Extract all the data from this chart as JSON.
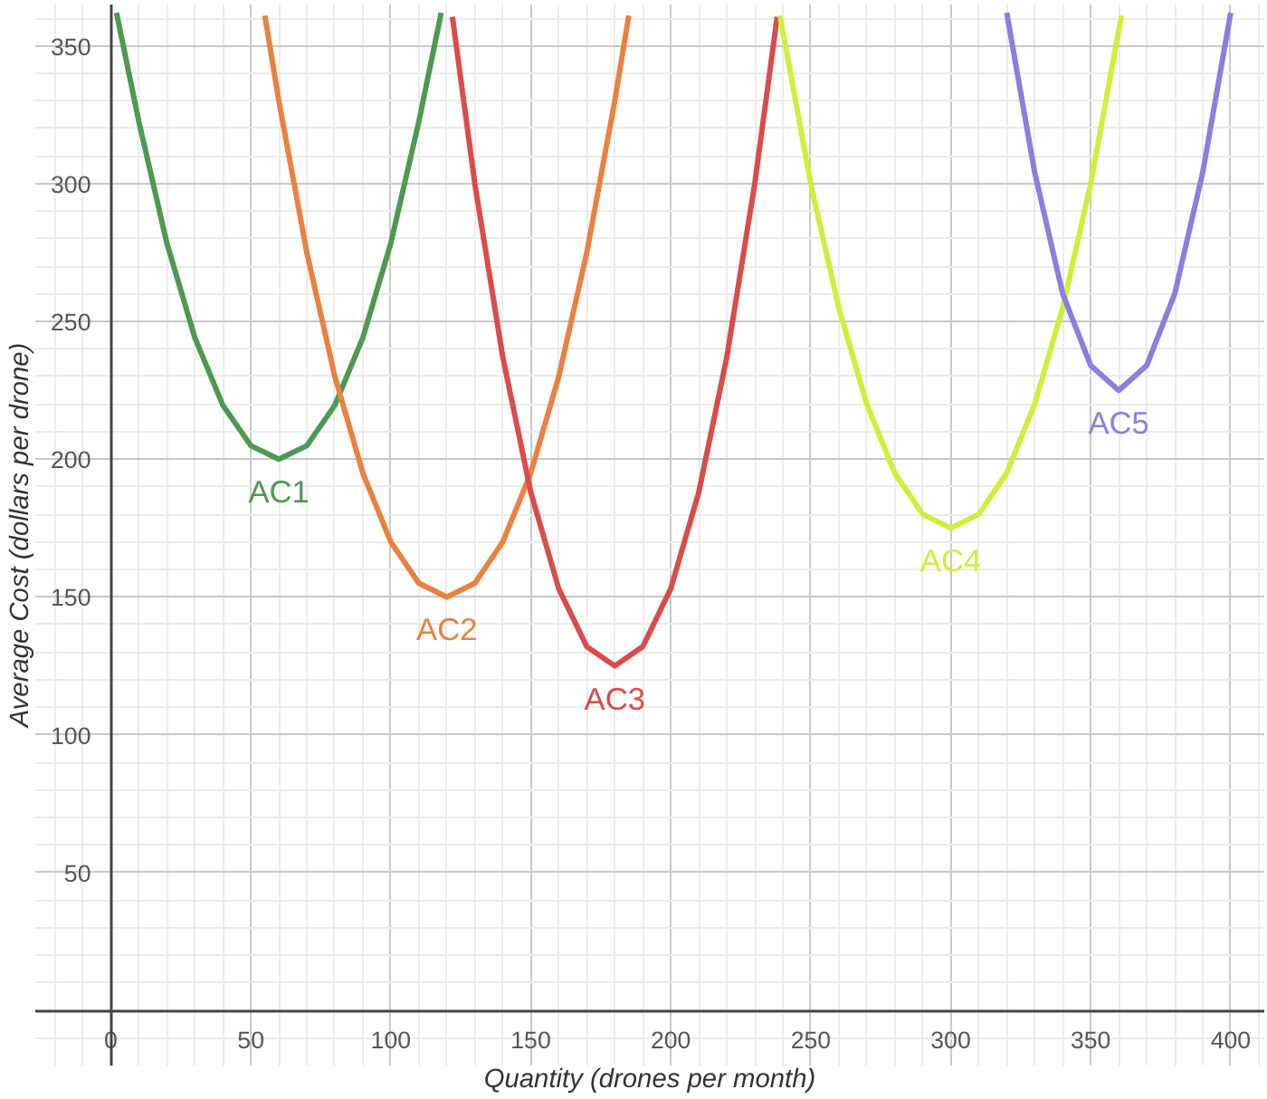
{
  "chart_data": {
    "type": "line",
    "xlabel": "Quantity (drones per month)",
    "ylabel": "Average Cost (dollars per drone)",
    "xlim": [
      -27,
      412
    ],
    "ylim": [
      -20,
      365
    ],
    "xticks": [
      0,
      50,
      100,
      150,
      200,
      250,
      300,
      350,
      400
    ],
    "yticks": [
      50,
      100,
      150,
      200,
      250,
      300,
      350
    ],
    "grid": true,
    "marker": "none",
    "line_style": "solid",
    "series": [
      {
        "name": "AC1",
        "color": "#4c9a50",
        "x": [
          2,
          10,
          20,
          30,
          40,
          50,
          60,
          70,
          80,
          90,
          100,
          110,
          118
        ],
        "values": [
          362,
          322.5,
          278.4,
          244.1,
          219.6,
          204.9,
          200,
          204.9,
          219.6,
          244.1,
          278.4,
          322.5,
          362
        ]
      },
      {
        "name": "AC2",
        "color": "#e8823f",
        "x": [
          55,
          60,
          70,
          80,
          90,
          100,
          110,
          120,
          130,
          140,
          150,
          160,
          170,
          180,
          185
        ],
        "values": [
          361,
          330,
          275,
          230,
          195,
          170,
          155,
          150,
          155,
          170,
          195,
          230,
          275,
          330,
          361
        ]
      },
      {
        "name": "AC3",
        "color": "#d94c4c",
        "x": [
          122,
          130,
          140,
          150,
          160,
          170,
          180,
          190,
          200,
          210,
          220,
          230,
          238
        ],
        "values": [
          360.5,
          300,
          237,
          188,
          153,
          132,
          125,
          132,
          153,
          188,
          237,
          300,
          360.5
        ]
      },
      {
        "name": "AC4",
        "color": "#ccf03c",
        "x": [
          239,
          250,
          260,
          270,
          280,
          290,
          300,
          310,
          320,
          330,
          340,
          350,
          361
        ],
        "values": [
          361,
          300,
          255,
          220,
          195,
          180,
          175,
          180,
          195,
          220,
          255,
          300,
          361
        ]
      },
      {
        "name": "AC5",
        "color": "#8a7ee0",
        "x": [
          320,
          330,
          340,
          350,
          360,
          370,
          380,
          390,
          400
        ],
        "values": [
          362,
          304,
          260,
          234,
          225,
          234,
          260,
          304,
          362
        ]
      }
    ]
  }
}
